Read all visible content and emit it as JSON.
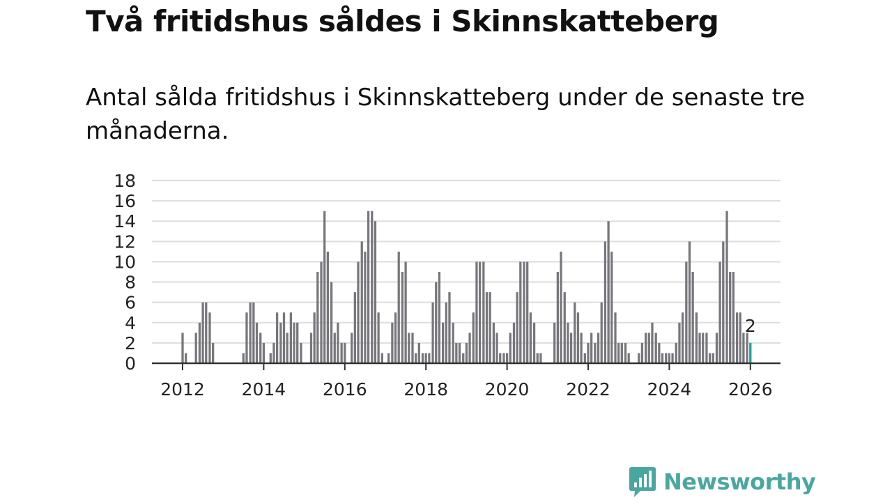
{
  "header": {
    "title": "Två fritidshus såldes i Skinnskatteberg",
    "subtitle": "Antal sålda fritidshus i Skinnskatteberg under de senaste tre månaderna."
  },
  "brand": {
    "name": "Newsworthy",
    "color": "#4aa79f",
    "icon": "chart-speech-bubble-icon"
  },
  "colors": {
    "bar": "#77767b",
    "highlight": "#1aa39a",
    "grid": "#dddddd",
    "axis": "#333333"
  },
  "chart_data": {
    "type": "bar",
    "title": "Två fritidshus såldes i Skinnskatteberg",
    "xlabel": "",
    "ylabel": "",
    "ylim": [
      0,
      18
    ],
    "yticks": [
      "0",
      "2",
      "4",
      "6",
      "8",
      "10",
      "12",
      "14",
      "16",
      "18"
    ],
    "xticks": [
      "2012",
      "2014",
      "2016",
      "2018",
      "2020",
      "2022",
      "2024",
      "2026"
    ],
    "x_range": [
      2011.5,
      2026.75
    ],
    "bar_width_years": 0.056,
    "bars": [
      {
        "x": 2011.6,
        "v": 0
      },
      {
        "x": 2011.7,
        "v": 0
      },
      {
        "x": 2011.8,
        "v": 0
      },
      {
        "x": 2011.9,
        "v": 0
      },
      {
        "x": 2012.0,
        "v": 3
      },
      {
        "x": 2012.08,
        "v": 1
      },
      {
        "x": 2012.17,
        "v": 0
      },
      {
        "x": 2012.25,
        "v": 0
      },
      {
        "x": 2012.33,
        "v": 3
      },
      {
        "x": 2012.42,
        "v": 4
      },
      {
        "x": 2012.5,
        "v": 6
      },
      {
        "x": 2012.58,
        "v": 6
      },
      {
        "x": 2012.67,
        "v": 5
      },
      {
        "x": 2012.75,
        "v": 2
      },
      {
        "x": 2013.5,
        "v": 1
      },
      {
        "x": 2013.58,
        "v": 5
      },
      {
        "x": 2013.67,
        "v": 6
      },
      {
        "x": 2013.75,
        "v": 6
      },
      {
        "x": 2013.83,
        "v": 4
      },
      {
        "x": 2013.92,
        "v": 3
      },
      {
        "x": 2014.0,
        "v": 2
      },
      {
        "x": 2014.17,
        "v": 1
      },
      {
        "x": 2014.25,
        "v": 2
      },
      {
        "x": 2014.33,
        "v": 5
      },
      {
        "x": 2014.42,
        "v": 4
      },
      {
        "x": 2014.5,
        "v": 5
      },
      {
        "x": 2014.58,
        "v": 3
      },
      {
        "x": 2014.67,
        "v": 5
      },
      {
        "x": 2014.75,
        "v": 4
      },
      {
        "x": 2014.83,
        "v": 4
      },
      {
        "x": 2014.92,
        "v": 2
      },
      {
        "x": 2015.17,
        "v": 3
      },
      {
        "x": 2015.25,
        "v": 5
      },
      {
        "x": 2015.33,
        "v": 9
      },
      {
        "x": 2015.42,
        "v": 10
      },
      {
        "x": 2015.5,
        "v": 15
      },
      {
        "x": 2015.58,
        "v": 11
      },
      {
        "x": 2015.67,
        "v": 8
      },
      {
        "x": 2015.75,
        "v": 3
      },
      {
        "x": 2015.83,
        "v": 4
      },
      {
        "x": 2015.92,
        "v": 2
      },
      {
        "x": 2016.0,
        "v": 2
      },
      {
        "x": 2016.17,
        "v": 3
      },
      {
        "x": 2016.25,
        "v": 7
      },
      {
        "x": 2016.33,
        "v": 10
      },
      {
        "x": 2016.42,
        "v": 12
      },
      {
        "x": 2016.5,
        "v": 11
      },
      {
        "x": 2016.58,
        "v": 15
      },
      {
        "x": 2016.67,
        "v": 15
      },
      {
        "x": 2016.75,
        "v": 14
      },
      {
        "x": 2016.83,
        "v": 5
      },
      {
        "x": 2016.92,
        "v": 1
      },
      {
        "x": 2017.08,
        "v": 1
      },
      {
        "x": 2017.17,
        "v": 4
      },
      {
        "x": 2017.25,
        "v": 5
      },
      {
        "x": 2017.33,
        "v": 11
      },
      {
        "x": 2017.42,
        "v": 9
      },
      {
        "x": 2017.5,
        "v": 10
      },
      {
        "x": 2017.58,
        "v": 3
      },
      {
        "x": 2017.67,
        "v": 3
      },
      {
        "x": 2017.75,
        "v": 1
      },
      {
        "x": 2017.83,
        "v": 2
      },
      {
        "x": 2017.92,
        "v": 1
      },
      {
        "x": 2018.0,
        "v": 1
      },
      {
        "x": 2018.08,
        "v": 1
      },
      {
        "x": 2018.17,
        "v": 6
      },
      {
        "x": 2018.25,
        "v": 8
      },
      {
        "x": 2018.33,
        "v": 9
      },
      {
        "x": 2018.42,
        "v": 4
      },
      {
        "x": 2018.5,
        "v": 6
      },
      {
        "x": 2018.58,
        "v": 7
      },
      {
        "x": 2018.67,
        "v": 4
      },
      {
        "x": 2018.75,
        "v": 2
      },
      {
        "x": 2018.83,
        "v": 2
      },
      {
        "x": 2018.92,
        "v": 1
      },
      {
        "x": 2019.0,
        "v": 2
      },
      {
        "x": 2019.08,
        "v": 3
      },
      {
        "x": 2019.17,
        "v": 5
      },
      {
        "x": 2019.25,
        "v": 10
      },
      {
        "x": 2019.33,
        "v": 10
      },
      {
        "x": 2019.42,
        "v": 10
      },
      {
        "x": 2019.5,
        "v": 7
      },
      {
        "x": 2019.58,
        "v": 7
      },
      {
        "x": 2019.67,
        "v": 4
      },
      {
        "x": 2019.75,
        "v": 3
      },
      {
        "x": 2019.83,
        "v": 1
      },
      {
        "x": 2019.92,
        "v": 1
      },
      {
        "x": 2020.0,
        "v": 1
      },
      {
        "x": 2020.08,
        "v": 3
      },
      {
        "x": 2020.17,
        "v": 4
      },
      {
        "x": 2020.25,
        "v": 7
      },
      {
        "x": 2020.33,
        "v": 10
      },
      {
        "x": 2020.42,
        "v": 10
      },
      {
        "x": 2020.5,
        "v": 10
      },
      {
        "x": 2020.58,
        "v": 5
      },
      {
        "x": 2020.67,
        "v": 4
      },
      {
        "x": 2020.75,
        "v": 1
      },
      {
        "x": 2020.83,
        "v": 1
      },
      {
        "x": 2021.17,
        "v": 4
      },
      {
        "x": 2021.25,
        "v": 9
      },
      {
        "x": 2021.33,
        "v": 11
      },
      {
        "x": 2021.42,
        "v": 7
      },
      {
        "x": 2021.5,
        "v": 4
      },
      {
        "x": 2021.58,
        "v": 3
      },
      {
        "x": 2021.67,
        "v": 6
      },
      {
        "x": 2021.75,
        "v": 5
      },
      {
        "x": 2021.83,
        "v": 3
      },
      {
        "x": 2021.92,
        "v": 1
      },
      {
        "x": 2022.0,
        "v": 2
      },
      {
        "x": 2022.08,
        "v": 3
      },
      {
        "x": 2022.17,
        "v": 2
      },
      {
        "x": 2022.25,
        "v": 3
      },
      {
        "x": 2022.33,
        "v": 6
      },
      {
        "x": 2022.42,
        "v": 12
      },
      {
        "x": 2022.5,
        "v": 14
      },
      {
        "x": 2022.58,
        "v": 11
      },
      {
        "x": 2022.67,
        "v": 5
      },
      {
        "x": 2022.75,
        "v": 2
      },
      {
        "x": 2022.83,
        "v": 2
      },
      {
        "x": 2022.92,
        "v": 2
      },
      {
        "x": 2023.0,
        "v": 1
      },
      {
        "x": 2023.25,
        "v": 1
      },
      {
        "x": 2023.33,
        "v": 2
      },
      {
        "x": 2023.42,
        "v": 3
      },
      {
        "x": 2023.5,
        "v": 3
      },
      {
        "x": 2023.58,
        "v": 4
      },
      {
        "x": 2023.67,
        "v": 3
      },
      {
        "x": 2023.75,
        "v": 2
      },
      {
        "x": 2023.83,
        "v": 1
      },
      {
        "x": 2023.92,
        "v": 1
      },
      {
        "x": 2024.0,
        "v": 1
      },
      {
        "x": 2024.08,
        "v": 1
      },
      {
        "x": 2024.17,
        "v": 2
      },
      {
        "x": 2024.25,
        "v": 4
      },
      {
        "x": 2024.33,
        "v": 5
      },
      {
        "x": 2024.42,
        "v": 10
      },
      {
        "x": 2024.5,
        "v": 12
      },
      {
        "x": 2024.58,
        "v": 9
      },
      {
        "x": 2024.67,
        "v": 5
      },
      {
        "x": 2024.75,
        "v": 3
      },
      {
        "x": 2024.83,
        "v": 3
      },
      {
        "x": 2024.92,
        "v": 3
      },
      {
        "x": 2025.0,
        "v": 1
      },
      {
        "x": 2025.08,
        "v": 1
      },
      {
        "x": 2025.17,
        "v": 3
      },
      {
        "x": 2025.25,
        "v": 10
      },
      {
        "x": 2025.33,
        "v": 12
      },
      {
        "x": 2025.42,
        "v": 15
      },
      {
        "x": 2025.5,
        "v": 9
      },
      {
        "x": 2025.58,
        "v": 9
      },
      {
        "x": 2025.67,
        "v": 5
      },
      {
        "x": 2025.75,
        "v": 5
      },
      {
        "x": 2025.83,
        "v": 3
      },
      {
        "x": 2025.92,
        "v": 3
      },
      {
        "x": 2026.0,
        "v": 2,
        "highlight": true
      }
    ],
    "annotations": [
      {
        "x": 2026.0,
        "value": 2,
        "text": "2"
      }
    ]
  }
}
